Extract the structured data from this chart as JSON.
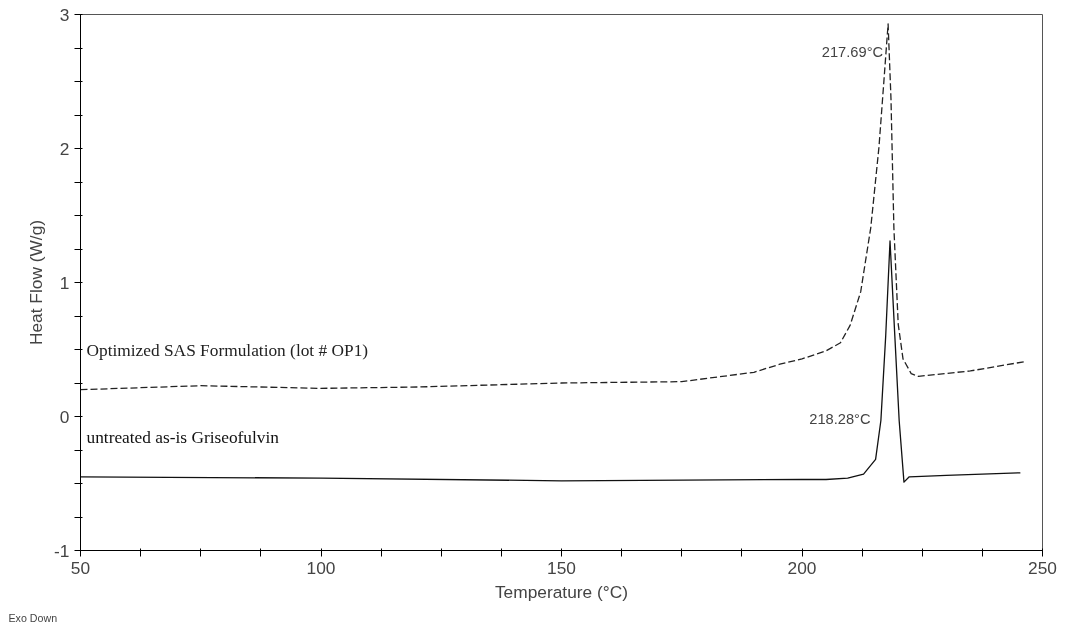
{
  "chart_data": {
    "type": "line",
    "xlabel": "Temperature (°C)",
    "ylabel": "Heat Flow (W/g)",
    "xlim": [
      50,
      250
    ],
    "ylim": [
      -1,
      3
    ],
    "xticks": [
      50,
      {
        "value": 62.5,
        "label": null
      },
      {
        "value": 75,
        "label": null
      },
      {
        "value": 87.5,
        "label": null
      },
      100,
      {
        "value": 112.5,
        "label": null
      },
      {
        "value": 125,
        "label": null
      },
      {
        "value": 137.5,
        "label": null
      },
      150,
      {
        "value": 162.5,
        "label": null
      },
      {
        "value": 175,
        "label": null
      },
      {
        "value": 187.5,
        "label": null
      },
      200,
      {
        "value": 212.5,
        "label": null
      },
      {
        "value": 225,
        "label": null
      },
      {
        "value": 237.5,
        "label": null
      },
      250
    ],
    "yticks": [
      -1,
      {
        "value": -0.75,
        "label": null
      },
      {
        "value": -0.5,
        "label": null
      },
      {
        "value": -0.25,
        "label": null
      },
      0,
      {
        "value": 0.25,
        "label": null
      },
      {
        "value": 0.5,
        "label": null
      },
      {
        "value": 0.75,
        "label": null
      },
      1,
      {
        "value": 1.25,
        "label": null
      },
      {
        "value": 1.5,
        "label": null
      },
      {
        "value": 1.75,
        "label": null
      },
      2,
      {
        "value": 2.25,
        "label": null
      },
      {
        "value": 2.5,
        "label": null
      },
      {
        "value": 2.75,
        "label": null
      },
      3
    ],
    "grid": false,
    "marker": "none",
    "series": [
      {
        "name": "Optimized SAS Formulation (lot # OP1)",
        "color": "#222222",
        "line_style": "dashed",
        "x": [
          50,
          75,
          100,
          120,
          150,
          175,
          190,
          195.4,
          200,
          205,
          208,
          210,
          212.2,
          214.3,
          216,
          217,
          217.9,
          218.5,
          219.1,
          220,
          221,
          222.7,
          224.2,
          235,
          246.4
        ],
        "values": [
          0.2,
          0.23,
          0.21,
          0.22,
          0.25,
          0.26,
          0.33,
          0.39,
          0.43,
          0.49,
          0.55,
          0.68,
          0.93,
          1.41,
          2.01,
          2.49,
          2.93,
          2.37,
          1.41,
          0.69,
          0.43,
          0.32,
          0.3,
          0.34,
          0.41
        ]
      },
      {
        "name": "untreated as-is Griseofulvin",
        "color": "#111111",
        "line_style": "solid",
        "x": [
          50,
          100,
          150,
          200,
          205,
          209.5,
          212.8,
          215.3,
          216.4,
          217.4,
          218.3,
          219.3,
          220.2,
          221.2,
          222.3,
          230,
          245.4
        ],
        "values": [
          -0.45,
          -0.46,
          -0.48,
          -0.47,
          -0.47,
          -0.46,
          -0.43,
          -0.32,
          -0.03,
          0.6,
          1.31,
          0.6,
          -0.03,
          -0.49,
          -0.45,
          -0.44,
          -0.42
        ]
      }
    ],
    "annotations": [
      {
        "text": "217.69°C",
        "x": 217.69,
        "y": 2.93
      },
      "218.28°C",
      "Exo Down"
    ]
  }
}
